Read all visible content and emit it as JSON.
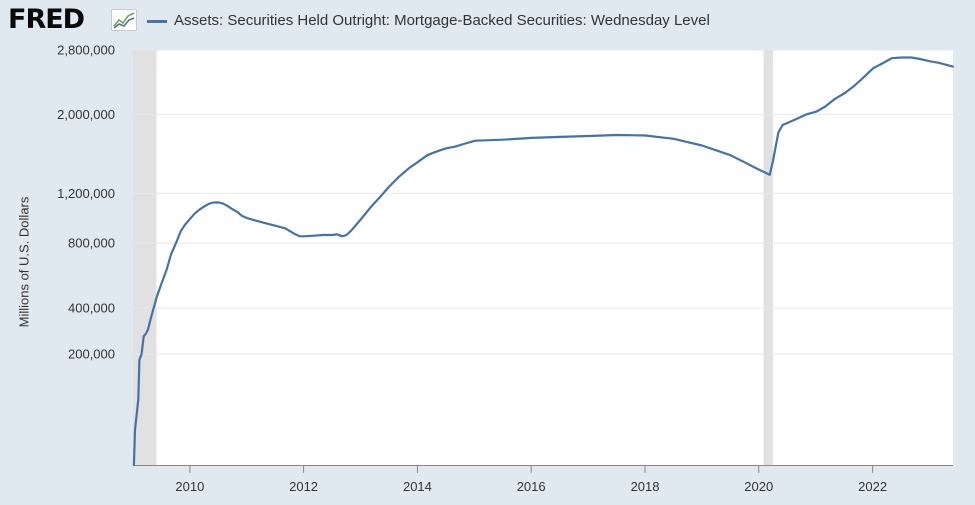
{
  "header": {
    "logo_text": "FRED",
    "logo_icon": "line-chart-icon",
    "legend_color": "#4572a7"
  },
  "chart_data": {
    "type": "line",
    "title": "",
    "series": [
      {
        "name": "Assets: Securities Held Outright: Mortgage-Backed Securities: Wednesday Level",
        "color": "#4572a7",
        "points": [
          [
            "2009-01-07",
            0
          ],
          [
            "2009-01-14",
            20000
          ],
          [
            "2009-01-28",
            50000
          ],
          [
            "2009-02-04",
            70000
          ],
          [
            "2009-02-11",
            180000
          ],
          [
            "2009-02-25",
            200000
          ],
          [
            "2009-03-11",
            270000
          ],
          [
            "2009-03-25",
            280000
          ],
          [
            "2009-04-08",
            300000
          ],
          [
            "2009-04-22",
            340000
          ],
          [
            "2009-05-06",
            380000
          ],
          [
            "2009-05-20",
            420000
          ],
          [
            "2009-06-03",
            460000
          ],
          [
            "2009-07-01",
            530000
          ],
          [
            "2009-08-05",
            620000
          ],
          [
            "2009-09-02",
            720000
          ],
          [
            "2009-10-07",
            810000
          ],
          [
            "2009-11-04",
            890000
          ],
          [
            "2009-12-02",
            940000
          ],
          [
            "2010-01-06",
            990000
          ],
          [
            "2010-02-03",
            1030000
          ],
          [
            "2010-03-03",
            1060000
          ],
          [
            "2010-04-07",
            1090000
          ],
          [
            "2010-05-05",
            1110000
          ],
          [
            "2010-06-02",
            1120000
          ],
          [
            "2010-07-07",
            1120000
          ],
          [
            "2010-08-04",
            1110000
          ],
          [
            "2010-09-01",
            1090000
          ],
          [
            "2010-10-06",
            1060000
          ],
          [
            "2010-11-03",
            1040000
          ],
          [
            "2010-12-01",
            1010000
          ],
          [
            "2011-01-05",
            990000
          ],
          [
            "2011-03-02",
            970000
          ],
          [
            "2011-05-04",
            950000
          ],
          [
            "2011-07-06",
            930000
          ],
          [
            "2011-09-07",
            910000
          ],
          [
            "2011-11-02",
            870000
          ],
          [
            "2011-12-07",
            850000
          ],
          [
            "2012-01-04",
            850000
          ],
          [
            "2012-03-07",
            855000
          ],
          [
            "2012-05-02",
            860000
          ],
          [
            "2012-07-04",
            860000
          ],
          [
            "2012-08-01",
            865000
          ],
          [
            "2012-09-05",
            850000
          ],
          [
            "2012-10-03",
            860000
          ],
          [
            "2012-11-07",
            900000
          ],
          [
            "2012-12-05",
            940000
          ],
          [
            "2013-01-02",
            980000
          ],
          [
            "2013-03-06",
            1080000
          ],
          [
            "2013-05-01",
            1160000
          ],
          [
            "2013-07-03",
            1260000
          ],
          [
            "2013-09-04",
            1350000
          ],
          [
            "2013-11-06",
            1430000
          ],
          [
            "2014-01-01",
            1490000
          ],
          [
            "2014-03-05",
            1560000
          ],
          [
            "2014-05-07",
            1600000
          ],
          [
            "2014-07-02",
            1630000
          ],
          [
            "2014-09-03",
            1650000
          ],
          [
            "2014-11-05",
            1680000
          ],
          [
            "2015-01-07",
            1710000
          ],
          [
            "2015-07-01",
            1720000
          ],
          [
            "2016-01-06",
            1740000
          ],
          [
            "2016-07-06",
            1750000
          ],
          [
            "2017-01-04",
            1760000
          ],
          [
            "2017-07-05",
            1770000
          ],
          [
            "2018-01-03",
            1765000
          ],
          [
            "2018-07-04",
            1730000
          ],
          [
            "2019-01-02",
            1660000
          ],
          [
            "2019-07-03",
            1560000
          ],
          [
            "2019-10-02",
            1490000
          ],
          [
            "2020-01-01",
            1420000
          ],
          [
            "2020-03-11",
            1370000
          ],
          [
            "2020-04-01",
            1500000
          ],
          [
            "2020-05-06",
            1800000
          ],
          [
            "2020-06-03",
            1880000
          ],
          [
            "2020-07-01",
            1900000
          ],
          [
            "2020-09-02",
            1950000
          ],
          [
            "2020-11-04",
            2000000
          ],
          [
            "2021-01-06",
            2030000
          ],
          [
            "2021-03-03",
            2090000
          ],
          [
            "2021-05-05",
            2180000
          ],
          [
            "2021-07-07",
            2250000
          ],
          [
            "2021-09-01",
            2330000
          ],
          [
            "2021-11-03",
            2440000
          ],
          [
            "2022-01-05",
            2560000
          ],
          [
            "2022-03-02",
            2620000
          ],
          [
            "2022-05-04",
            2690000
          ],
          [
            "2022-07-06",
            2700000
          ],
          [
            "2022-09-07",
            2700000
          ],
          [
            "2022-11-02",
            2680000
          ],
          [
            "2023-01-04",
            2650000
          ],
          [
            "2023-03-01",
            2630000
          ],
          [
            "2023-05-31",
            2580000
          ]
        ]
      }
    ],
    "xlabel": "",
    "ylabel": "Millions of U.S. Dollars",
    "x_range": [
      "2009-01-01",
      "2023-06-01"
    ],
    "x_ticks": [
      "2010",
      "2012",
      "2014",
      "2016",
      "2018",
      "2020",
      "2022"
    ],
    "y_range": [
      0,
      2800000
    ],
    "y_scale": "sqrt",
    "y_ticks": [
      200000,
      400000,
      800000,
      1200000,
      2000000,
      2800000
    ],
    "y_tick_labels": [
      "200,000",
      "400,000",
      "800,000",
      "1,200,000",
      "2,000,000",
      "2,800,000"
    ],
    "recessions": [
      [
        "2009-01-01",
        "2009-06-01"
      ],
      [
        "2020-02-01",
        "2020-04-01"
      ]
    ],
    "grid": true,
    "colors": {
      "plot_background": "#ffffff",
      "page_background": "#e1e9f0",
      "recession": "#e1e1e1",
      "gridline": "#e8e8e8"
    }
  }
}
